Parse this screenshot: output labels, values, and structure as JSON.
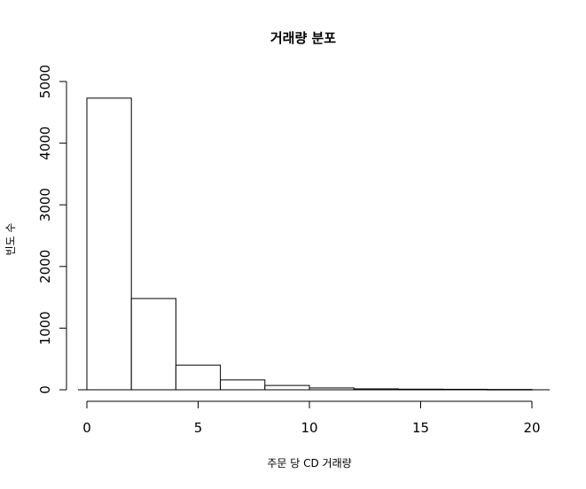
{
  "chart_data": {
    "type": "bar",
    "title": "거래량 분포",
    "xlabel": "주문 당 CD 거래량",
    "ylabel": "빈도 수",
    "bins": [
      {
        "from": 0,
        "to": 2,
        "value": 4730
      },
      {
        "from": 2,
        "to": 4,
        "value": 1480
      },
      {
        "from": 4,
        "to": 6,
        "value": 400
      },
      {
        "from": 6,
        "to": 8,
        "value": 160
      },
      {
        "from": 8,
        "to": 10,
        "value": 70
      },
      {
        "from": 10,
        "to": 12,
        "value": 30
      },
      {
        "from": 12,
        "to": 14,
        "value": 15
      },
      {
        "from": 14,
        "to": 16,
        "value": 10
      },
      {
        "from": 16,
        "to": 18,
        "value": 8
      },
      {
        "from": 18,
        "to": 20,
        "value": 5
      }
    ],
    "xticks": [
      0,
      5,
      10,
      15,
      20
    ],
    "yticks": [
      0,
      1000,
      2000,
      3000,
      4000,
      5000
    ],
    "xlim": [
      0,
      20
    ],
    "ylim": [
      0,
      5000
    ],
    "grid": false,
    "colors": {
      "bar_fill": "#ffffff",
      "bar_stroke": "#000000"
    }
  }
}
